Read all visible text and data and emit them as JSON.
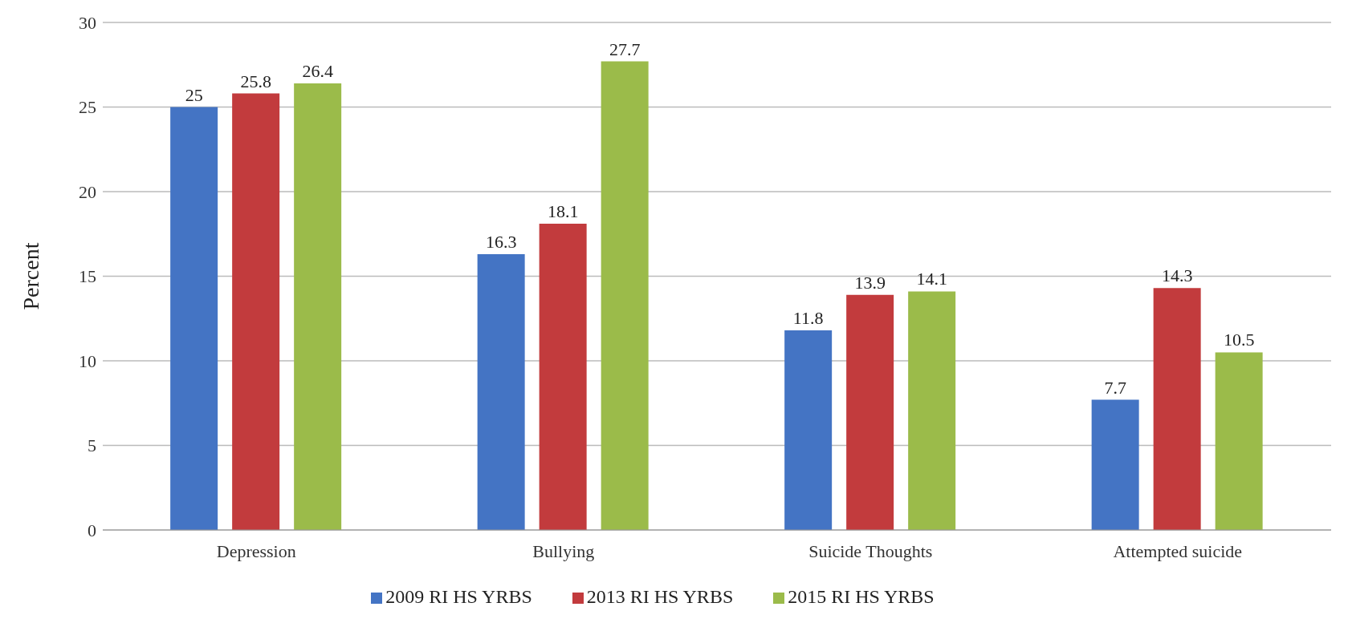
{
  "chart_data": {
    "type": "bar",
    "ylabel": "Percent",
    "categories": [
      "Depression",
      "Bullying",
      "Suicide Thoughts",
      "Attempted suicide"
    ],
    "series": [
      {
        "name": "2009 RI HS YRBS",
        "color": "#4474c4",
        "values": [
          25,
          16.3,
          11.8,
          7.7
        ]
      },
      {
        "name": "2013 RI HS YRBS",
        "color": "#c23b3d",
        "values": [
          25.8,
          18.1,
          13.9,
          14.3
        ]
      },
      {
        "name": "2015 RI HS YRBS",
        "color": "#9bbb4a",
        "values": [
          26.4,
          27.7,
          14.1,
          10.5
        ]
      }
    ],
    "ylim": [
      0,
      30
    ],
    "yticks": [
      0,
      5,
      10,
      15,
      20,
      25,
      30
    ],
    "grid": "y",
    "legend": "bottom",
    "data_labels": true
  }
}
